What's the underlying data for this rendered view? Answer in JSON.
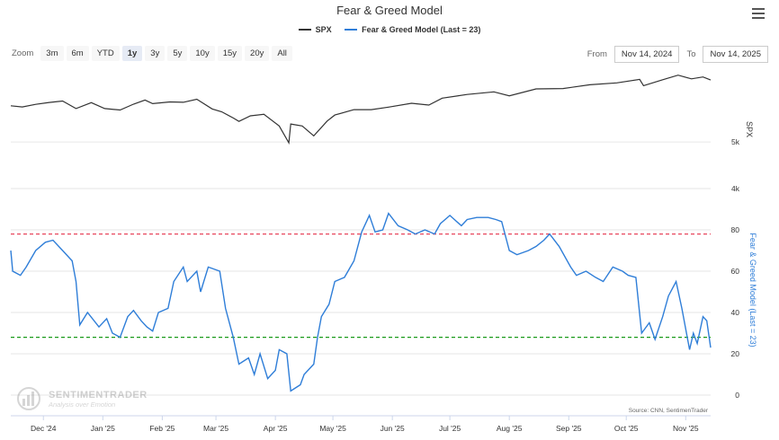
{
  "title": "Fear & Greed Model",
  "legend": [
    {
      "name": "SPX",
      "color": "#333333"
    },
    {
      "name": "Fear & Greed Model (Last = 23)",
      "color": "#2f7ed8"
    }
  ],
  "zoom": {
    "label": "Zoom",
    "buttons": [
      "3m",
      "6m",
      "YTD",
      "1y",
      "3y",
      "5y",
      "10y",
      "15y",
      "20y",
      "All"
    ],
    "active": "1y"
  },
  "range": {
    "from_label": "From",
    "from": "Nov 14, 2024",
    "to_label": "To",
    "to": "Nov 14, 2025"
  },
  "icons": {
    "menu": "hamburger-menu-icon",
    "watermark": "sentimentrader-logo-icon"
  },
  "watermark": {
    "name": "SENTIMENTRADER",
    "tagline": "Analysis over Emotion"
  },
  "credit": "Source: CNN, SentimenTrader",
  "chart_data": [
    {
      "type": "line",
      "series": [
        {
          "name": "SPX"
        }
      ],
      "ylabel": "SPX",
      "y_axis_side": "right",
      "y_ticks": [
        "5k",
        "4k"
      ],
      "x_range": [
        "2024-11-14",
        "2025-11-14"
      ],
      "points": [
        [
          "2024-11-14",
          5950
        ],
        [
          "2024-11-20",
          5915
        ],
        [
          "2024-11-27",
          5990
        ],
        [
          "2024-12-04",
          6045
        ],
        [
          "2024-12-11",
          6085
        ],
        [
          "2024-12-18",
          5870
        ],
        [
          "2024-12-26",
          6040
        ],
        [
          "2025-01-02",
          5870
        ],
        [
          "2025-01-10",
          5830
        ],
        [
          "2025-01-17",
          5995
        ],
        [
          "2025-01-23",
          6115
        ],
        [
          "2025-01-27",
          6010
        ],
        [
          "2025-02-05",
          6060
        ],
        [
          "2025-02-12",
          6050
        ],
        [
          "2025-02-19",
          6140
        ],
        [
          "2025-02-27",
          5860
        ],
        [
          "2025-03-04",
          5780
        ],
        [
          "2025-03-10",
          5610
        ],
        [
          "2025-03-13",
          5520
        ],
        [
          "2025-03-19",
          5670
        ],
        [
          "2025-03-26",
          5710
        ],
        [
          "2025-04-03",
          5400
        ],
        [
          "2025-04-08",
          4980
        ],
        [
          "2025-04-09",
          5450
        ],
        [
          "2025-04-15",
          5400
        ],
        [
          "2025-04-21",
          5150
        ],
        [
          "2025-04-28",
          5530
        ],
        [
          "2025-05-02",
          5690
        ],
        [
          "2025-05-12",
          5840
        ],
        [
          "2025-05-21",
          5840
        ],
        [
          "2025-05-30",
          5910
        ],
        [
          "2025-06-11",
          6020
        ],
        [
          "2025-06-20",
          5970
        ],
        [
          "2025-06-27",
          6170
        ],
        [
          "2025-07-10",
          6280
        ],
        [
          "2025-07-24",
          6360
        ],
        [
          "2025-08-01",
          6240
        ],
        [
          "2025-08-15",
          6450
        ],
        [
          "2025-08-29",
          6460
        ],
        [
          "2025-09-12",
          6580
        ],
        [
          "2025-09-26",
          6640
        ],
        [
          "2025-10-08",
          6750
        ],
        [
          "2025-10-10",
          6550
        ],
        [
          "2025-10-20",
          6740
        ],
        [
          "2025-10-28",
          6890
        ],
        [
          "2025-11-04",
          6770
        ],
        [
          "2025-11-10",
          6830
        ],
        [
          "2025-11-14",
          6730
        ]
      ]
    },
    {
      "type": "line",
      "series": [
        {
          "name": "Fear & Greed Model (Last = 23)"
        }
      ],
      "ylabel": "Fear & Greed Model (Last = 23)",
      "y_axis_side": "right",
      "ylim": [
        0,
        100
      ],
      "y_ticks": [
        0,
        20,
        40,
        60,
        80
      ],
      "reference_lines": [
        {
          "value": 78,
          "color": "#e8475d",
          "style": "dashed"
        },
        {
          "value": 28,
          "color": "#1a9a1a",
          "style": "dashed"
        }
      ],
      "x_ticks": [
        "Dec '24",
        "Jan '25",
        "Feb '25",
        "Mar '25",
        "Apr '25",
        "May '25",
        "Jun '25",
        "Jul '25",
        "Aug '25",
        "Sep '25",
        "Oct '25",
        "Nov '25"
      ],
      "last_value": 23,
      "points": [
        [
          "2024-11-14",
          70
        ],
        [
          "2024-11-15",
          60
        ],
        [
          "2024-11-19",
          58
        ],
        [
          "2024-11-22",
          62
        ],
        [
          "2024-11-27",
          70
        ],
        [
          "2024-12-02",
          74
        ],
        [
          "2024-12-06",
          75
        ],
        [
          "2024-12-11",
          70
        ],
        [
          "2024-12-16",
          65
        ],
        [
          "2024-12-18",
          55
        ],
        [
          "2024-12-20",
          34
        ],
        [
          "2024-12-24",
          40
        ],
        [
          "2024-12-30",
          33
        ],
        [
          "2025-01-03",
          37
        ],
        [
          "2025-01-06",
          30
        ],
        [
          "2025-01-10",
          28
        ],
        [
          "2025-01-14",
          38
        ],
        [
          "2025-01-17",
          41
        ],
        [
          "2025-01-21",
          36
        ],
        [
          "2025-01-24",
          33
        ],
        [
          "2025-01-27",
          31
        ],
        [
          "2025-01-30",
          40
        ],
        [
          "2025-02-04",
          42
        ],
        [
          "2025-02-07",
          55
        ],
        [
          "2025-02-12",
          62
        ],
        [
          "2025-02-14",
          55
        ],
        [
          "2025-02-19",
          60
        ],
        [
          "2025-02-21",
          50
        ],
        [
          "2025-02-25",
          62
        ],
        [
          "2025-03-03",
          60
        ],
        [
          "2025-03-06",
          42
        ],
        [
          "2025-03-10",
          28
        ],
        [
          "2025-03-13",
          15
        ],
        [
          "2025-03-18",
          18
        ],
        [
          "2025-03-21",
          10
        ],
        [
          "2025-03-24",
          20
        ],
        [
          "2025-03-28",
          8
        ],
        [
          "2025-04-01",
          12
        ],
        [
          "2025-04-03",
          22
        ],
        [
          "2025-04-07",
          20
        ],
        [
          "2025-04-09",
          2
        ],
        [
          "2025-04-14",
          5
        ],
        [
          "2025-04-16",
          10
        ],
        [
          "2025-04-21",
          15
        ],
        [
          "2025-04-23",
          28
        ],
        [
          "2025-04-25",
          38
        ],
        [
          "2025-04-29",
          44
        ],
        [
          "2025-05-02",
          55
        ],
        [
          "2025-05-07",
          57
        ],
        [
          "2025-05-12",
          65
        ],
        [
          "2025-05-16",
          79
        ],
        [
          "2025-05-20",
          87
        ],
        [
          "2025-05-23",
          79
        ],
        [
          "2025-05-27",
          80
        ],
        [
          "2025-05-30",
          88
        ],
        [
          "2025-06-04",
          82
        ],
        [
          "2025-06-09",
          80
        ],
        [
          "2025-06-13",
          78
        ],
        [
          "2025-06-18",
          80
        ],
        [
          "2025-06-23",
          78
        ],
        [
          "2025-06-26",
          83
        ],
        [
          "2025-07-01",
          87
        ],
        [
          "2025-07-07",
          82
        ],
        [
          "2025-07-10",
          85
        ],
        [
          "2025-07-15",
          86
        ],
        [
          "2025-07-21",
          86
        ],
        [
          "2025-07-25",
          85
        ],
        [
          "2025-07-28",
          84
        ],
        [
          "2025-08-01",
          70
        ],
        [
          "2025-08-05",
          68
        ],
        [
          "2025-08-11",
          70
        ],
        [
          "2025-08-15",
          72
        ],
        [
          "2025-08-19",
          75
        ],
        [
          "2025-08-22",
          78
        ],
        [
          "2025-08-27",
          72
        ],
        [
          "2025-09-02",
          62
        ],
        [
          "2025-09-05",
          58
        ],
        [
          "2025-09-10",
          60
        ],
        [
          "2025-09-15",
          57
        ],
        [
          "2025-09-19",
          55
        ],
        [
          "2025-09-24",
          62
        ],
        [
          "2025-09-29",
          60
        ],
        [
          "2025-10-02",
          58
        ],
        [
          "2025-10-06",
          57
        ],
        [
          "2025-10-09",
          30
        ],
        [
          "2025-10-13",
          35
        ],
        [
          "2025-10-16",
          27
        ],
        [
          "2025-10-20",
          38
        ],
        [
          "2025-10-23",
          48
        ],
        [
          "2025-10-27",
          55
        ],
        [
          "2025-10-30",
          42
        ],
        [
          "2025-11-03",
          22
        ],
        [
          "2025-11-05",
          30
        ],
        [
          "2025-11-07",
          25
        ],
        [
          "2025-11-10",
          38
        ],
        [
          "2025-11-12",
          36
        ],
        [
          "2025-11-14",
          23
        ]
      ]
    }
  ]
}
